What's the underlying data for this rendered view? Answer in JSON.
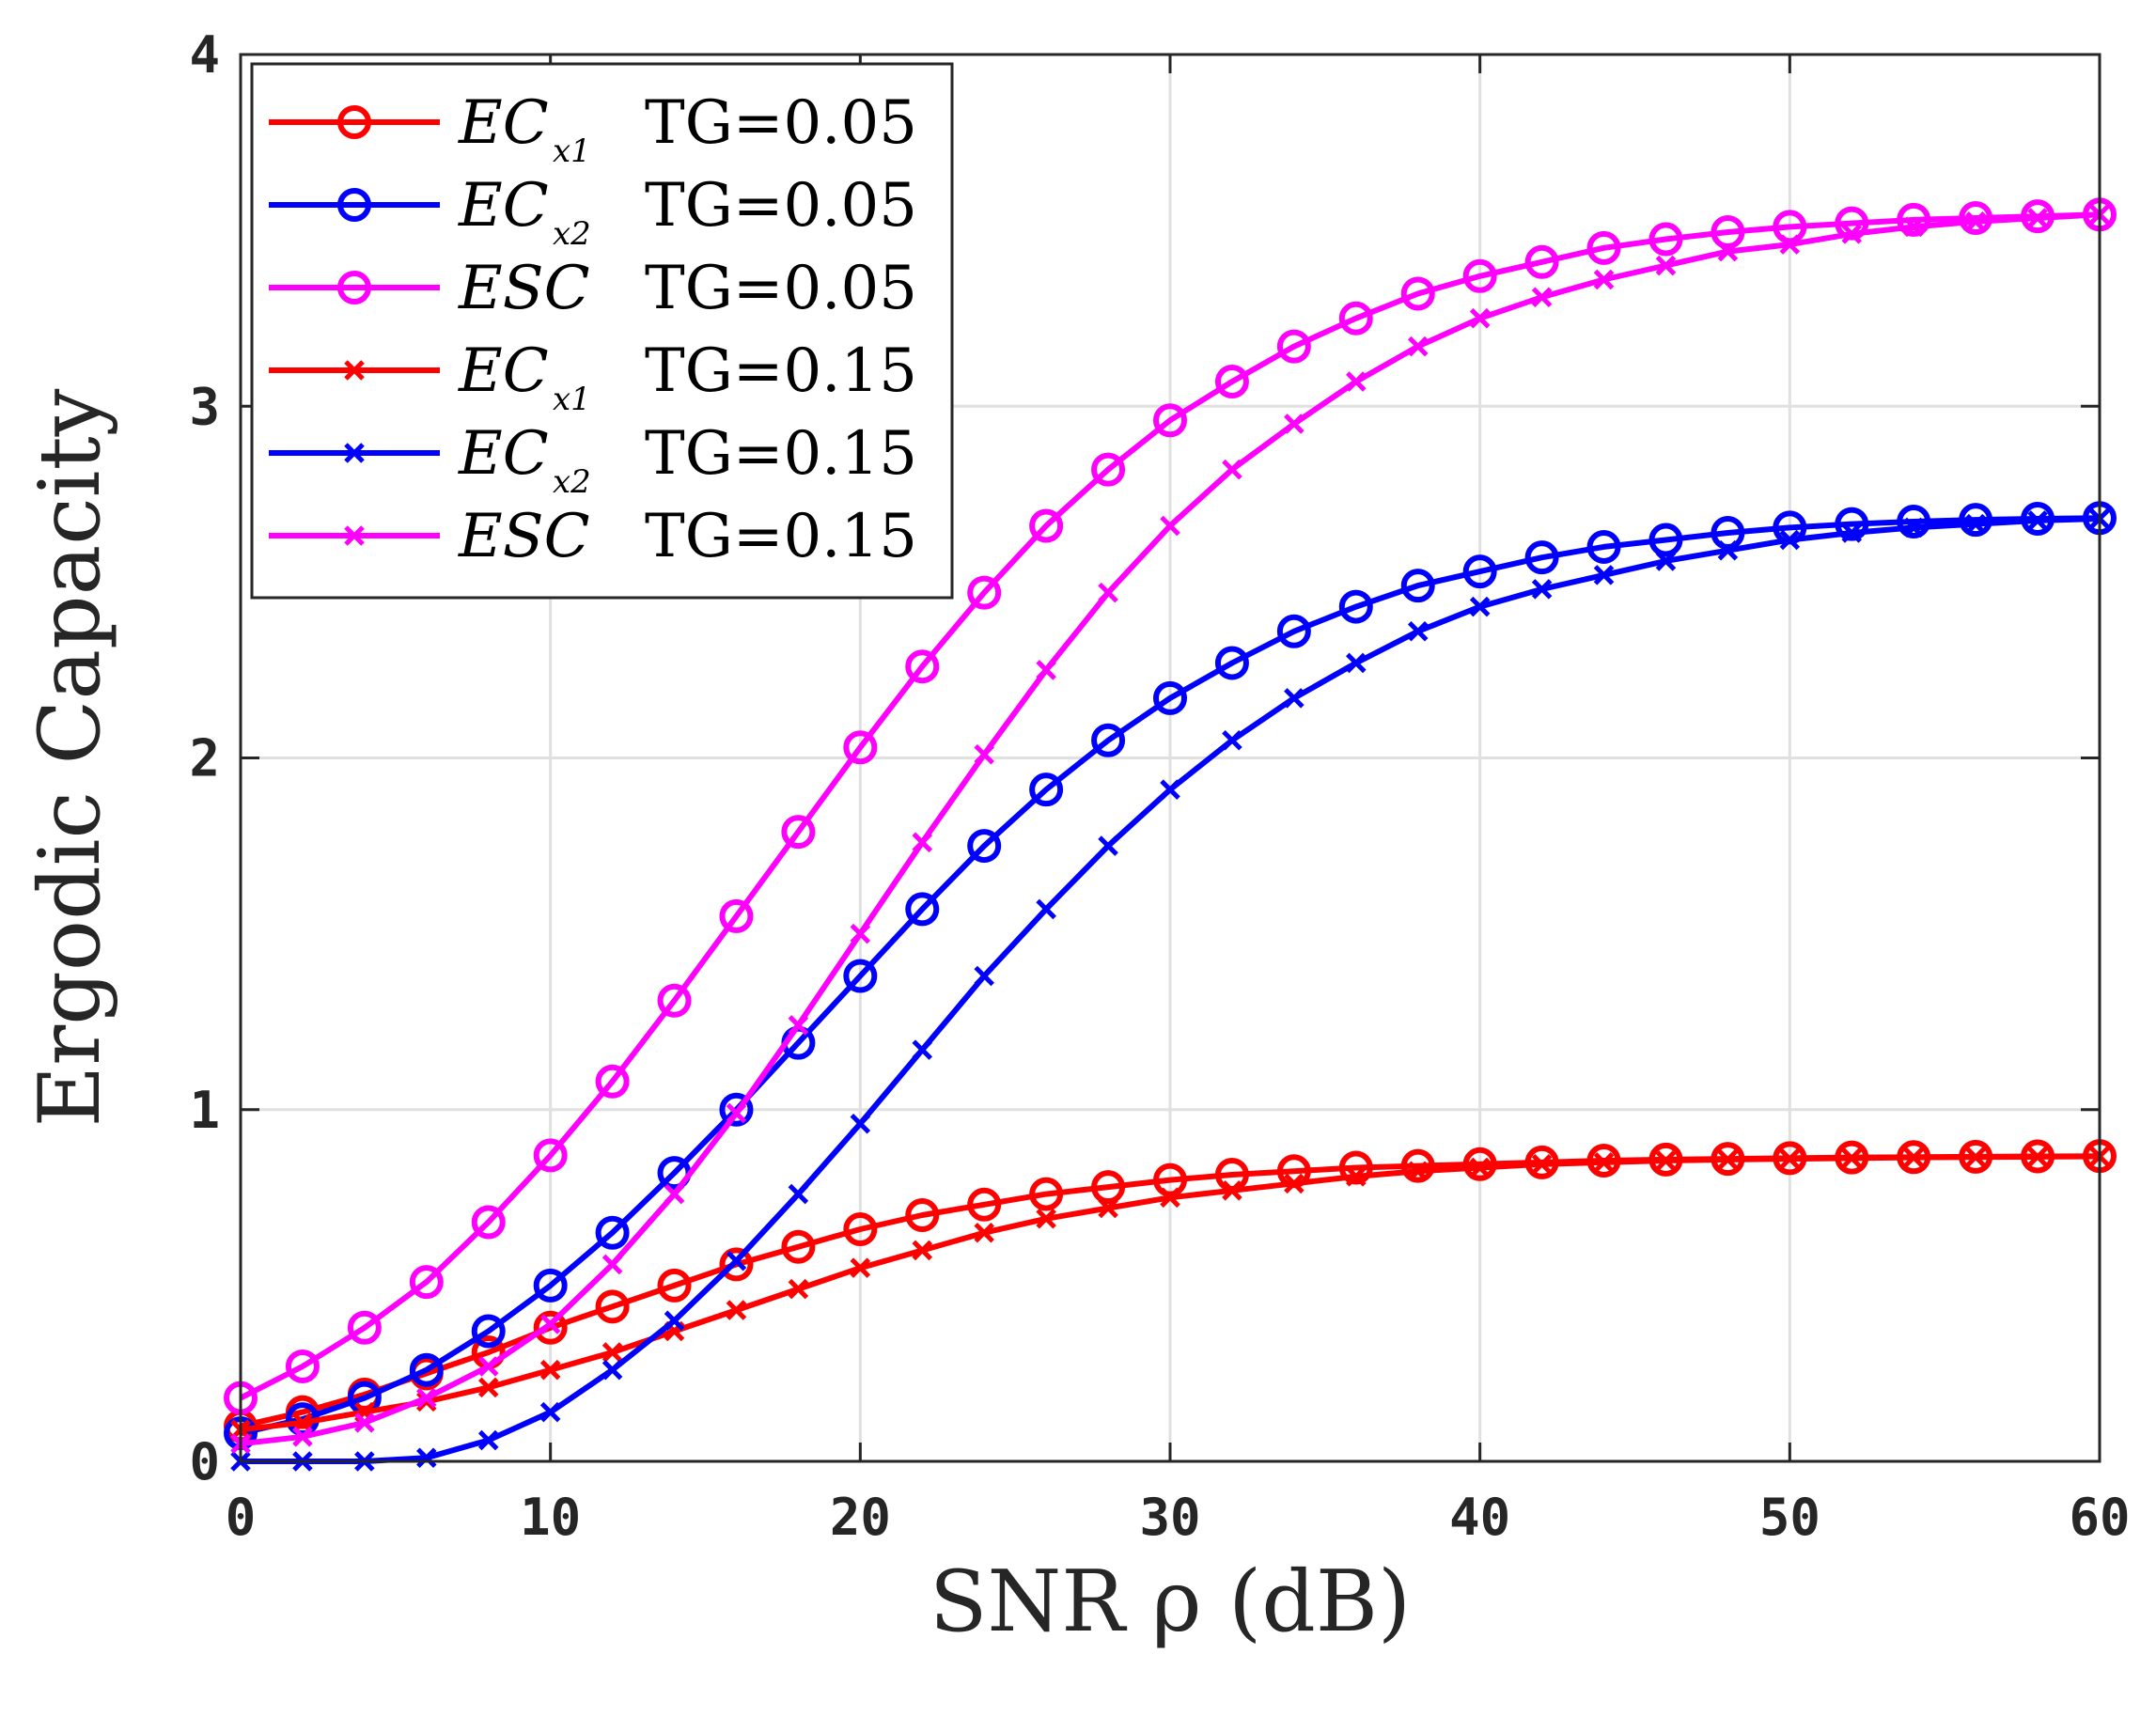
{
  "chart_data": {
    "type": "line",
    "title": "",
    "xlabel": "SNR ρ (dB)",
    "ylabel": "Ergodic Capacity",
    "xlim": [
      0,
      60
    ],
    "ylim": [
      0,
      4
    ],
    "grid": true,
    "legend_location": "top-left",
    "x_ticks": [
      "0",
      "10",
      "20",
      "30",
      "40",
      "50",
      "60"
    ],
    "y_ticks": [
      "0",
      "1",
      "2",
      "3",
      "4"
    ],
    "x": [
      0,
      2,
      4,
      6,
      8,
      10,
      12,
      14,
      16,
      18,
      20,
      22,
      24,
      26,
      28,
      30,
      32,
      34,
      36,
      38,
      40,
      42,
      44,
      46,
      48,
      50,
      52,
      54,
      56,
      58,
      60
    ],
    "series": [
      {
        "name": "EC_x1 TG=0.05",
        "symbol": "EC",
        "subscript": "x1",
        "tg_label": "TG=0.05",
        "color": "#ff0000",
        "marker": "circle",
        "values": [
          0.1,
          0.14,
          0.19,
          0.25,
          0.31,
          0.38,
          0.44,
          0.5,
          0.56,
          0.61,
          0.66,
          0.7,
          0.73,
          0.76,
          0.78,
          0.8,
          0.815,
          0.825,
          0.835,
          0.84,
          0.845,
          0.85,
          0.855,
          0.858,
          0.86,
          0.862,
          0.864,
          0.865,
          0.866,
          0.867,
          0.868
        ]
      },
      {
        "name": "EC_x2 TG=0.05",
        "symbol": "EC",
        "subscript": "x2",
        "tg_label": "TG=0.05",
        "color": "#0000ff",
        "marker": "circle",
        "values": [
          0.08,
          0.12,
          0.18,
          0.26,
          0.37,
          0.5,
          0.65,
          0.82,
          1.0,
          1.19,
          1.38,
          1.57,
          1.75,
          1.91,
          2.05,
          2.17,
          2.27,
          2.36,
          2.43,
          2.49,
          2.53,
          2.57,
          2.6,
          2.62,
          2.64,
          2.655,
          2.665,
          2.672,
          2.677,
          2.68,
          2.682
        ]
      },
      {
        "name": "ESC TG=0.05",
        "symbol": "ESC",
        "subscript": "",
        "tg_label": "TG=0.05",
        "color": "#ff00ff",
        "marker": "circle",
        "values": [
          0.18,
          0.27,
          0.38,
          0.51,
          0.68,
          0.87,
          1.08,
          1.31,
          1.55,
          1.79,
          2.03,
          2.26,
          2.47,
          2.66,
          2.82,
          2.96,
          3.07,
          3.17,
          3.25,
          3.32,
          3.37,
          3.41,
          3.45,
          3.475,
          3.495,
          3.51,
          3.52,
          3.53,
          3.535,
          3.54,
          3.545
        ]
      },
      {
        "name": "EC_x1 TG=0.15",
        "symbol": "EC",
        "subscript": "x1",
        "tg_label": "TG=0.15",
        "color": "#ff0000",
        "marker": "x",
        "values": [
          0.09,
          0.11,
          0.14,
          0.17,
          0.21,
          0.26,
          0.31,
          0.37,
          0.43,
          0.49,
          0.55,
          0.6,
          0.65,
          0.69,
          0.72,
          0.75,
          0.77,
          0.79,
          0.81,
          0.825,
          0.835,
          0.845,
          0.85,
          0.855,
          0.858,
          0.86,
          0.862,
          0.864,
          0.865,
          0.866,
          0.867
        ]
      },
      {
        "name": "EC_x2 TG=0.15",
        "symbol": "EC",
        "subscript": "x2",
        "tg_label": "TG=0.15",
        "color": "#0000ff",
        "marker": "x",
        "values": [
          0.0,
          0.0,
          0.0,
          0.01,
          0.06,
          0.14,
          0.26,
          0.4,
          0.57,
          0.76,
          0.96,
          1.17,
          1.38,
          1.57,
          1.75,
          1.91,
          2.05,
          2.17,
          2.27,
          2.36,
          2.43,
          2.48,
          2.52,
          2.56,
          2.59,
          2.62,
          2.64,
          2.655,
          2.665,
          2.675,
          2.68
        ]
      },
      {
        "name": "ESC TG=0.15",
        "symbol": "ESC",
        "subscript": "",
        "tg_label": "TG=0.15",
        "color": "#ff00ff",
        "marker": "x",
        "values": [
          0.05,
          0.07,
          0.11,
          0.18,
          0.27,
          0.39,
          0.56,
          0.76,
          0.99,
          1.24,
          1.5,
          1.76,
          2.01,
          2.25,
          2.47,
          2.66,
          2.82,
          2.95,
          3.07,
          3.17,
          3.25,
          3.31,
          3.36,
          3.4,
          3.44,
          3.46,
          3.49,
          3.51,
          3.525,
          3.535,
          3.545
        ]
      }
    ]
  }
}
